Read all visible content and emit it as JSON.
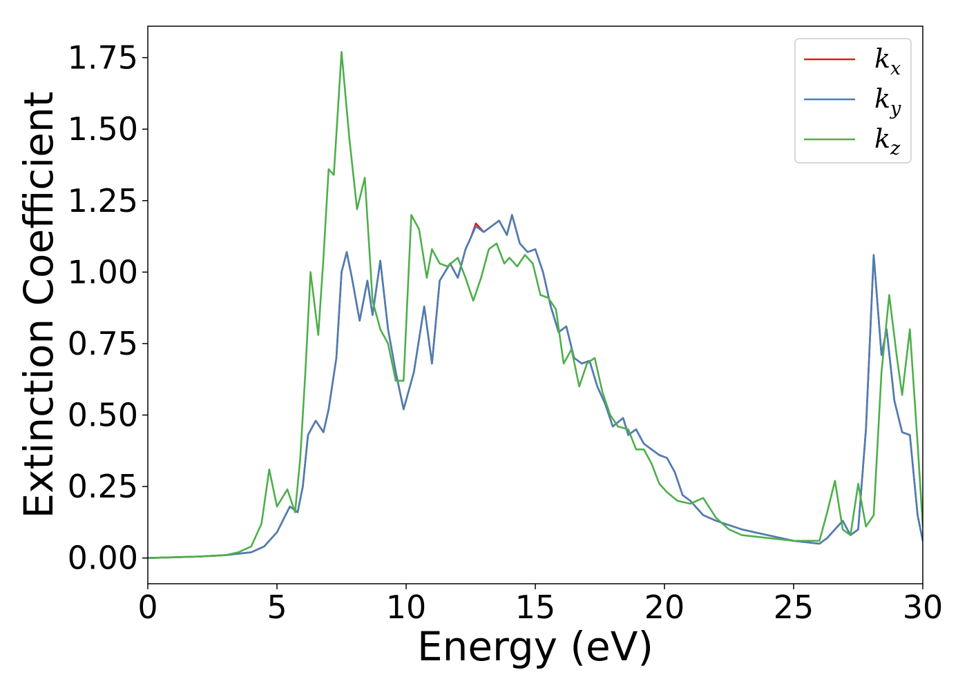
{
  "chart_data": {
    "type": "line",
    "title": "",
    "xlabel": "Energy (eV)",
    "ylabel": "Extinction Coefficient",
    "xlim": [
      0,
      30
    ],
    "ylim": [
      -0.09,
      1.86
    ],
    "xticks": [
      0,
      5,
      10,
      15,
      20,
      25,
      30
    ],
    "xtick_labels": [
      "0",
      "5",
      "10",
      "15",
      "20",
      "25",
      "30"
    ],
    "yticks": [
      0.0,
      0.25,
      0.5,
      0.75,
      1.0,
      1.25,
      1.5,
      1.75
    ],
    "ytick_labels": [
      "0.00",
      "0.25",
      "0.50",
      "0.75",
      "1.00",
      "1.25",
      "1.50",
      "1.75"
    ],
    "grid": false,
    "legend_position": "top-right",
    "series": [
      {
        "name": "k_x",
        "label_base": "k",
        "label_sub": "x",
        "color": "#e41a1c",
        "x": [
          0,
          2,
          3,
          4,
          4.5,
          5,
          5.5,
          5.8,
          6,
          6.2,
          6.5,
          6.8,
          7.0,
          7.3,
          7.5,
          7.7,
          7.9,
          8.2,
          8.5,
          8.7,
          9.0,
          9.3,
          9.6,
          9.9,
          10.3,
          10.7,
          11.0,
          11.3,
          11.7,
          12.0,
          12.3,
          12.5,
          12.7,
          13.0,
          13.3,
          13.6,
          13.9,
          14.1,
          14.4,
          14.7,
          15.0,
          15.3,
          15.6,
          15.9,
          16.2,
          16.5,
          16.8,
          17.1,
          17.4,
          17.7,
          18.0,
          18.4,
          18.6,
          18.9,
          19.2,
          19.5,
          19.8,
          20.1,
          20.4,
          20.7,
          21.0,
          21.5,
          22,
          23,
          24,
          25,
          26,
          26.3,
          26.6,
          26.9,
          27.2,
          27.5,
          27.8,
          28.1,
          28.4,
          28.6,
          28.9,
          29.2,
          29.5,
          29.8,
          30
        ],
        "y": [
          0,
          0.005,
          0.01,
          0.02,
          0.04,
          0.09,
          0.18,
          0.16,
          0.25,
          0.43,
          0.48,
          0.44,
          0.52,
          0.7,
          1.0,
          1.07,
          0.98,
          0.83,
          0.97,
          0.85,
          1.04,
          0.8,
          0.65,
          0.52,
          0.65,
          0.88,
          0.68,
          0.97,
          1.03,
          0.98,
          1.08,
          1.12,
          1.17,
          1.14,
          1.16,
          1.18,
          1.13,
          1.2,
          1.1,
          1.07,
          1.08,
          1.0,
          0.88,
          0.79,
          0.81,
          0.7,
          0.68,
          0.69,
          0.6,
          0.54,
          0.46,
          0.49,
          0.43,
          0.45,
          0.4,
          0.38,
          0.36,
          0.35,
          0.3,
          0.22,
          0.2,
          0.15,
          0.13,
          0.1,
          0.08,
          0.06,
          0.05,
          0.07,
          0.1,
          0.13,
          0.08,
          0.1,
          0.45,
          1.06,
          0.71,
          0.8,
          0.55,
          0.44,
          0.43,
          0.15,
          0.06
        ]
      },
      {
        "name": "k_y",
        "label_base": "k",
        "label_sub": "y",
        "color": "#4a7fb5",
        "x": [
          0,
          2,
          3,
          4,
          4.5,
          5,
          5.5,
          5.8,
          6,
          6.2,
          6.5,
          6.8,
          7.0,
          7.3,
          7.5,
          7.7,
          7.9,
          8.2,
          8.5,
          8.7,
          9.0,
          9.3,
          9.6,
          9.9,
          10.3,
          10.7,
          11.0,
          11.3,
          11.7,
          12.0,
          12.3,
          12.5,
          12.7,
          13.0,
          13.3,
          13.6,
          13.9,
          14.1,
          14.4,
          14.7,
          15.0,
          15.3,
          15.6,
          15.9,
          16.2,
          16.5,
          16.8,
          17.1,
          17.4,
          17.7,
          18.0,
          18.4,
          18.6,
          18.9,
          19.2,
          19.5,
          19.8,
          20.1,
          20.4,
          20.7,
          21.0,
          21.5,
          22,
          23,
          24,
          25,
          26,
          26.3,
          26.6,
          26.9,
          27.2,
          27.5,
          27.8,
          28.1,
          28.4,
          28.6,
          28.9,
          29.2,
          29.5,
          29.8,
          30
        ],
        "y": [
          0,
          0.005,
          0.01,
          0.02,
          0.04,
          0.09,
          0.18,
          0.16,
          0.25,
          0.43,
          0.48,
          0.44,
          0.52,
          0.7,
          1.0,
          1.07,
          0.98,
          0.83,
          0.97,
          0.85,
          1.04,
          0.8,
          0.65,
          0.52,
          0.65,
          0.88,
          0.68,
          0.97,
          1.03,
          0.98,
          1.08,
          1.12,
          1.16,
          1.14,
          1.16,
          1.18,
          1.13,
          1.2,
          1.1,
          1.07,
          1.08,
          1.0,
          0.88,
          0.79,
          0.81,
          0.7,
          0.68,
          0.69,
          0.6,
          0.54,
          0.46,
          0.49,
          0.43,
          0.45,
          0.4,
          0.38,
          0.36,
          0.35,
          0.3,
          0.22,
          0.2,
          0.15,
          0.13,
          0.1,
          0.08,
          0.06,
          0.05,
          0.07,
          0.1,
          0.13,
          0.08,
          0.1,
          0.45,
          1.06,
          0.71,
          0.8,
          0.55,
          0.44,
          0.43,
          0.15,
          0.06
        ]
      },
      {
        "name": "k_z",
        "label_base": "k",
        "label_sub": "z",
        "color": "#4daf4a",
        "x": [
          0,
          2,
          3,
          3.5,
          4,
          4.4,
          4.7,
          5.0,
          5.4,
          5.7,
          5.9,
          6.1,
          6.3,
          6.6,
          6.8,
          7.0,
          7.2,
          7.5,
          7.8,
          8.1,
          8.4,
          8.7,
          9.0,
          9.3,
          9.6,
          9.9,
          10.2,
          10.5,
          10.8,
          11.0,
          11.3,
          11.6,
          12.0,
          12.3,
          12.6,
          12.9,
          13.2,
          13.5,
          13.8,
          14.0,
          14.3,
          14.6,
          14.9,
          15.2,
          15.5,
          15.8,
          16.1,
          16.4,
          16.7,
          17.0,
          17.3,
          17.6,
          17.9,
          18.2,
          18.6,
          18.9,
          19.2,
          19.5,
          19.8,
          20.1,
          20.5,
          21.0,
          21.5,
          22,
          22.5,
          23,
          24,
          25,
          25.5,
          26.0,
          26.3,
          26.6,
          26.9,
          27.2,
          27.5,
          27.8,
          28.1,
          28.4,
          28.7,
          29.0,
          29.2,
          29.5,
          29.8,
          30
        ],
        "y": [
          0,
          0.005,
          0.01,
          0.02,
          0.04,
          0.12,
          0.31,
          0.18,
          0.24,
          0.16,
          0.35,
          0.65,
          1.0,
          0.78,
          1.05,
          1.36,
          1.34,
          1.77,
          1.47,
          1.22,
          1.33,
          0.9,
          0.8,
          0.75,
          0.62,
          0.62,
          1.2,
          1.15,
          0.98,
          1.08,
          1.03,
          1.02,
          1.05,
          0.98,
          0.9,
          0.98,
          1.08,
          1.1,
          1.03,
          1.05,
          1.02,
          1.06,
          1.03,
          0.92,
          0.91,
          0.87,
          0.68,
          0.73,
          0.6,
          0.68,
          0.7,
          0.58,
          0.5,
          0.46,
          0.45,
          0.38,
          0.38,
          0.33,
          0.26,
          0.23,
          0.2,
          0.19,
          0.21,
          0.14,
          0.1,
          0.08,
          0.07,
          0.06,
          0.06,
          0.06,
          0.16,
          0.27,
          0.1,
          0.08,
          0.26,
          0.11,
          0.15,
          0.65,
          0.92,
          0.7,
          0.57,
          0.8,
          0.4,
          0.11
        ]
      }
    ]
  }
}
